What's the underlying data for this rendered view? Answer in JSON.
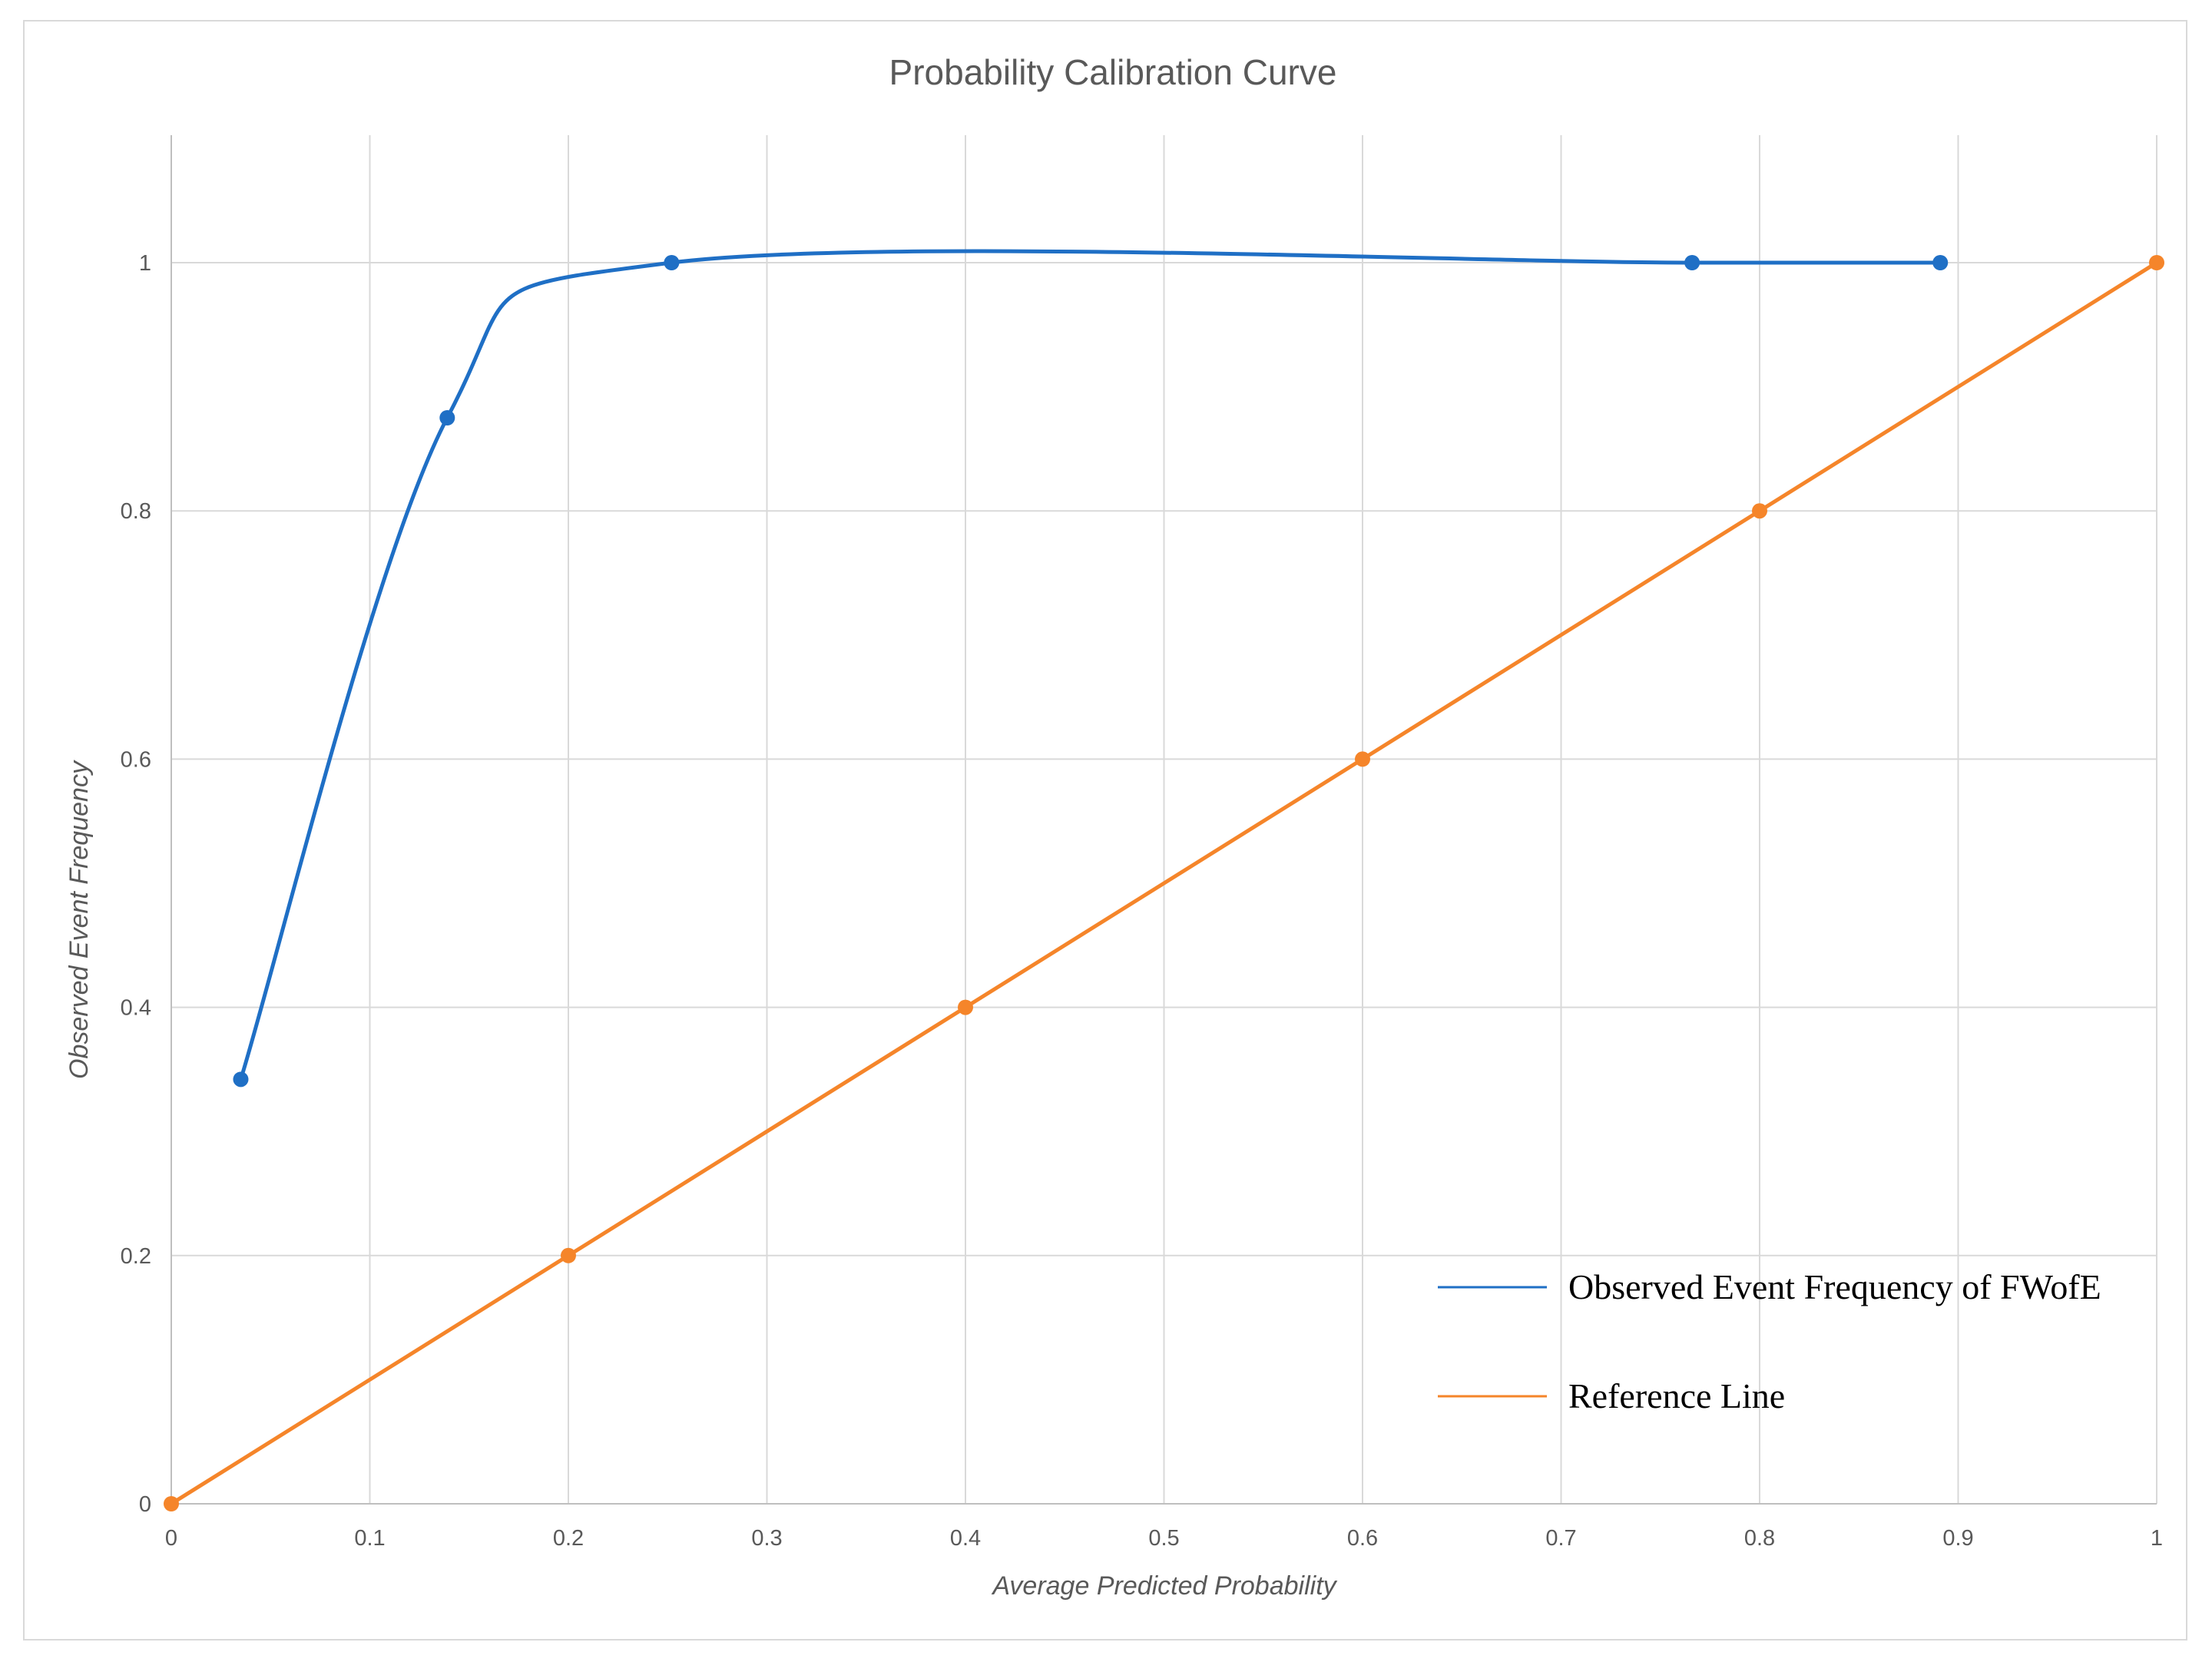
{
  "chart_data": {
    "type": "line",
    "title": "Probability Calibration Curve",
    "xlabel": "Average Predicted Probability",
    "ylabel": "Observed Event Frequency",
    "xlim": [
      0,
      1
    ],
    "ylim": [
      0,
      1.1
    ],
    "x_ticks": [
      "0",
      "0.1",
      "0.2",
      "0.3",
      "0.4",
      "0.5",
      "0.6",
      "0.7",
      "0.8",
      "0.9",
      "1"
    ],
    "y_ticks": [
      "0",
      "0.2",
      "0.4",
      "0.6",
      "0.8",
      "1"
    ],
    "grid": true,
    "legend_position": "bottom-right",
    "series": [
      {
        "name": "Observed Event Frequency of FWofE",
        "color": "#1f6fc5",
        "smooth": true,
        "x": [
          0.035,
          0.139,
          0.252,
          0.766,
          0.891
        ],
        "y": [
          0.342,
          0.875,
          1.0,
          1.0,
          1.0
        ]
      },
      {
        "name": "Reference Line",
        "color": "#f5852a",
        "smooth": false,
        "x": [
          0,
          0.2,
          0.4,
          0.6,
          0.8,
          1.0
        ],
        "y": [
          0,
          0.2,
          0.4,
          0.6,
          0.8,
          1.0
        ]
      }
    ]
  }
}
